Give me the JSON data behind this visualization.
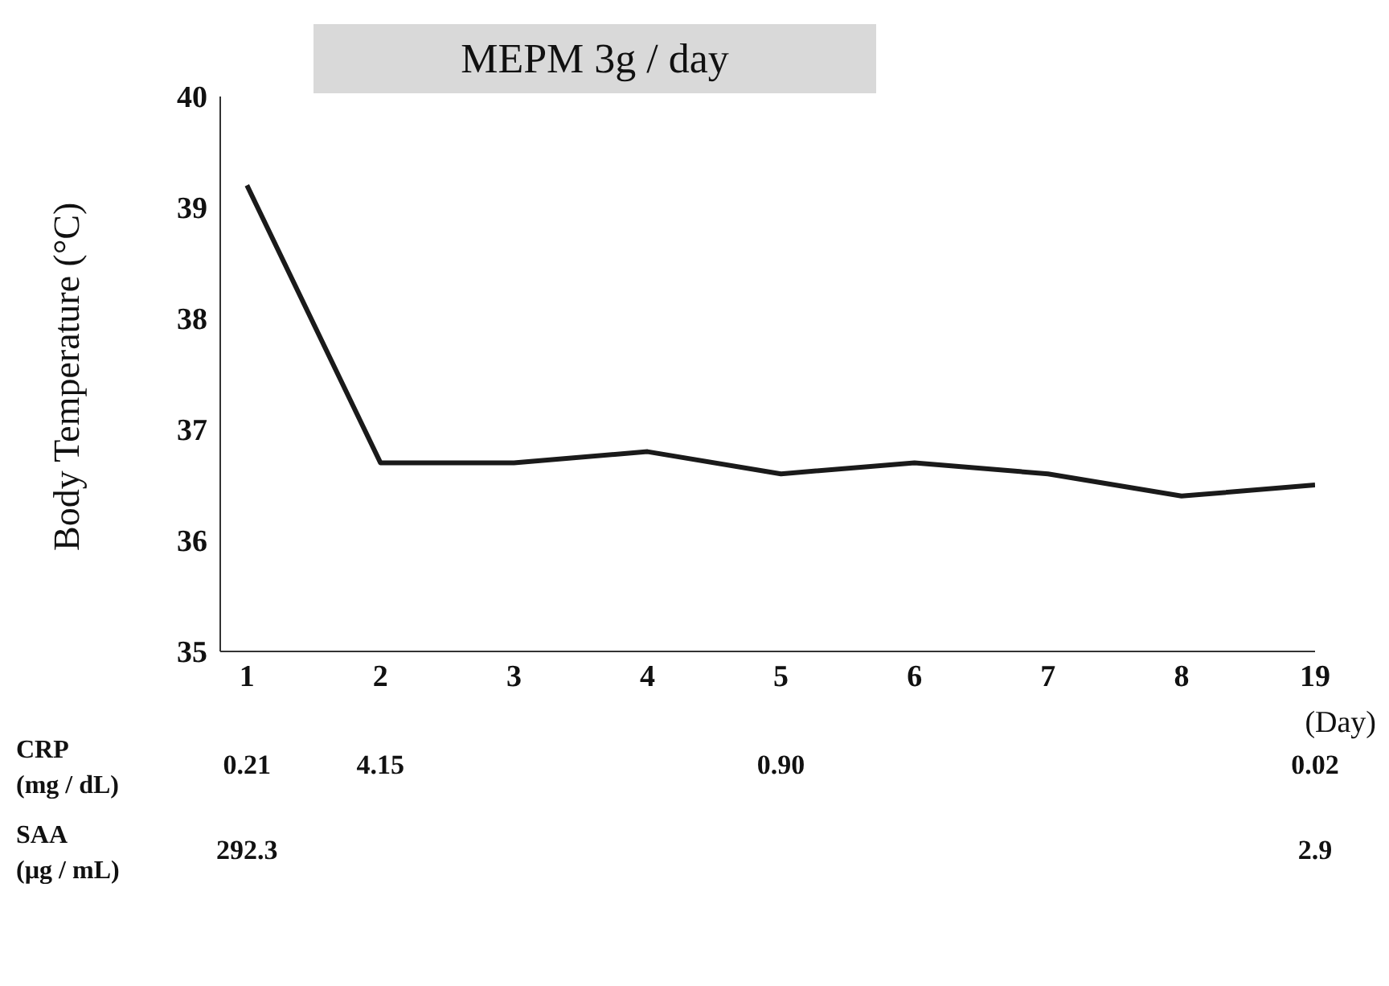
{
  "chart_data": [
    {
      "type": "line",
      "title": "MEPM 3g / day",
      "ylabel": "Body Temperature (°C)",
      "xlabel": "(Day)",
      "categories": [
        "1",
        "2",
        "3",
        "4",
        "5",
        "6",
        "7",
        "8",
        "19"
      ],
      "series": [
        {
          "color": "#1a1a1a",
          "values": [
            39.2,
            36.7,
            36.7,
            36.8,
            36.6,
            36.7,
            36.6,
            36.4,
            36.5
          ]
        }
      ],
      "ylim": [
        35,
        40
      ],
      "yticks": [
        35,
        36,
        37,
        38,
        39,
        40
      ],
      "grid": false,
      "legend": false,
      "marker": "none",
      "line_style": "solid"
    },
    {
      "type": "heatmap",
      "categories": [
        "1",
        "2",
        null,
        null,
        "5",
        null,
        null,
        null,
        "19"
      ],
      "y_categories": [
        "CRP\n(mg / dL)",
        "SAA\n(µg / mL)"
      ],
      "cells": [
        [
          0.21,
          4.15,
          null,
          null,
          0.9,
          null,
          null,
          null,
          0.02
        ],
        [
          292.3,
          null,
          null,
          null,
          null,
          null,
          null,
          null,
          2.9
        ]
      ],
      "cell_labels": [
        [
          "0.21",
          "4.15",
          null,
          null,
          "0.90",
          null,
          null,
          null,
          "0.02"
        ],
        [
          "292.3",
          null,
          null,
          null,
          null,
          null,
          null,
          null,
          "2.9"
        ]
      ],
      "tick_labels": "y"
    }
  ]
}
